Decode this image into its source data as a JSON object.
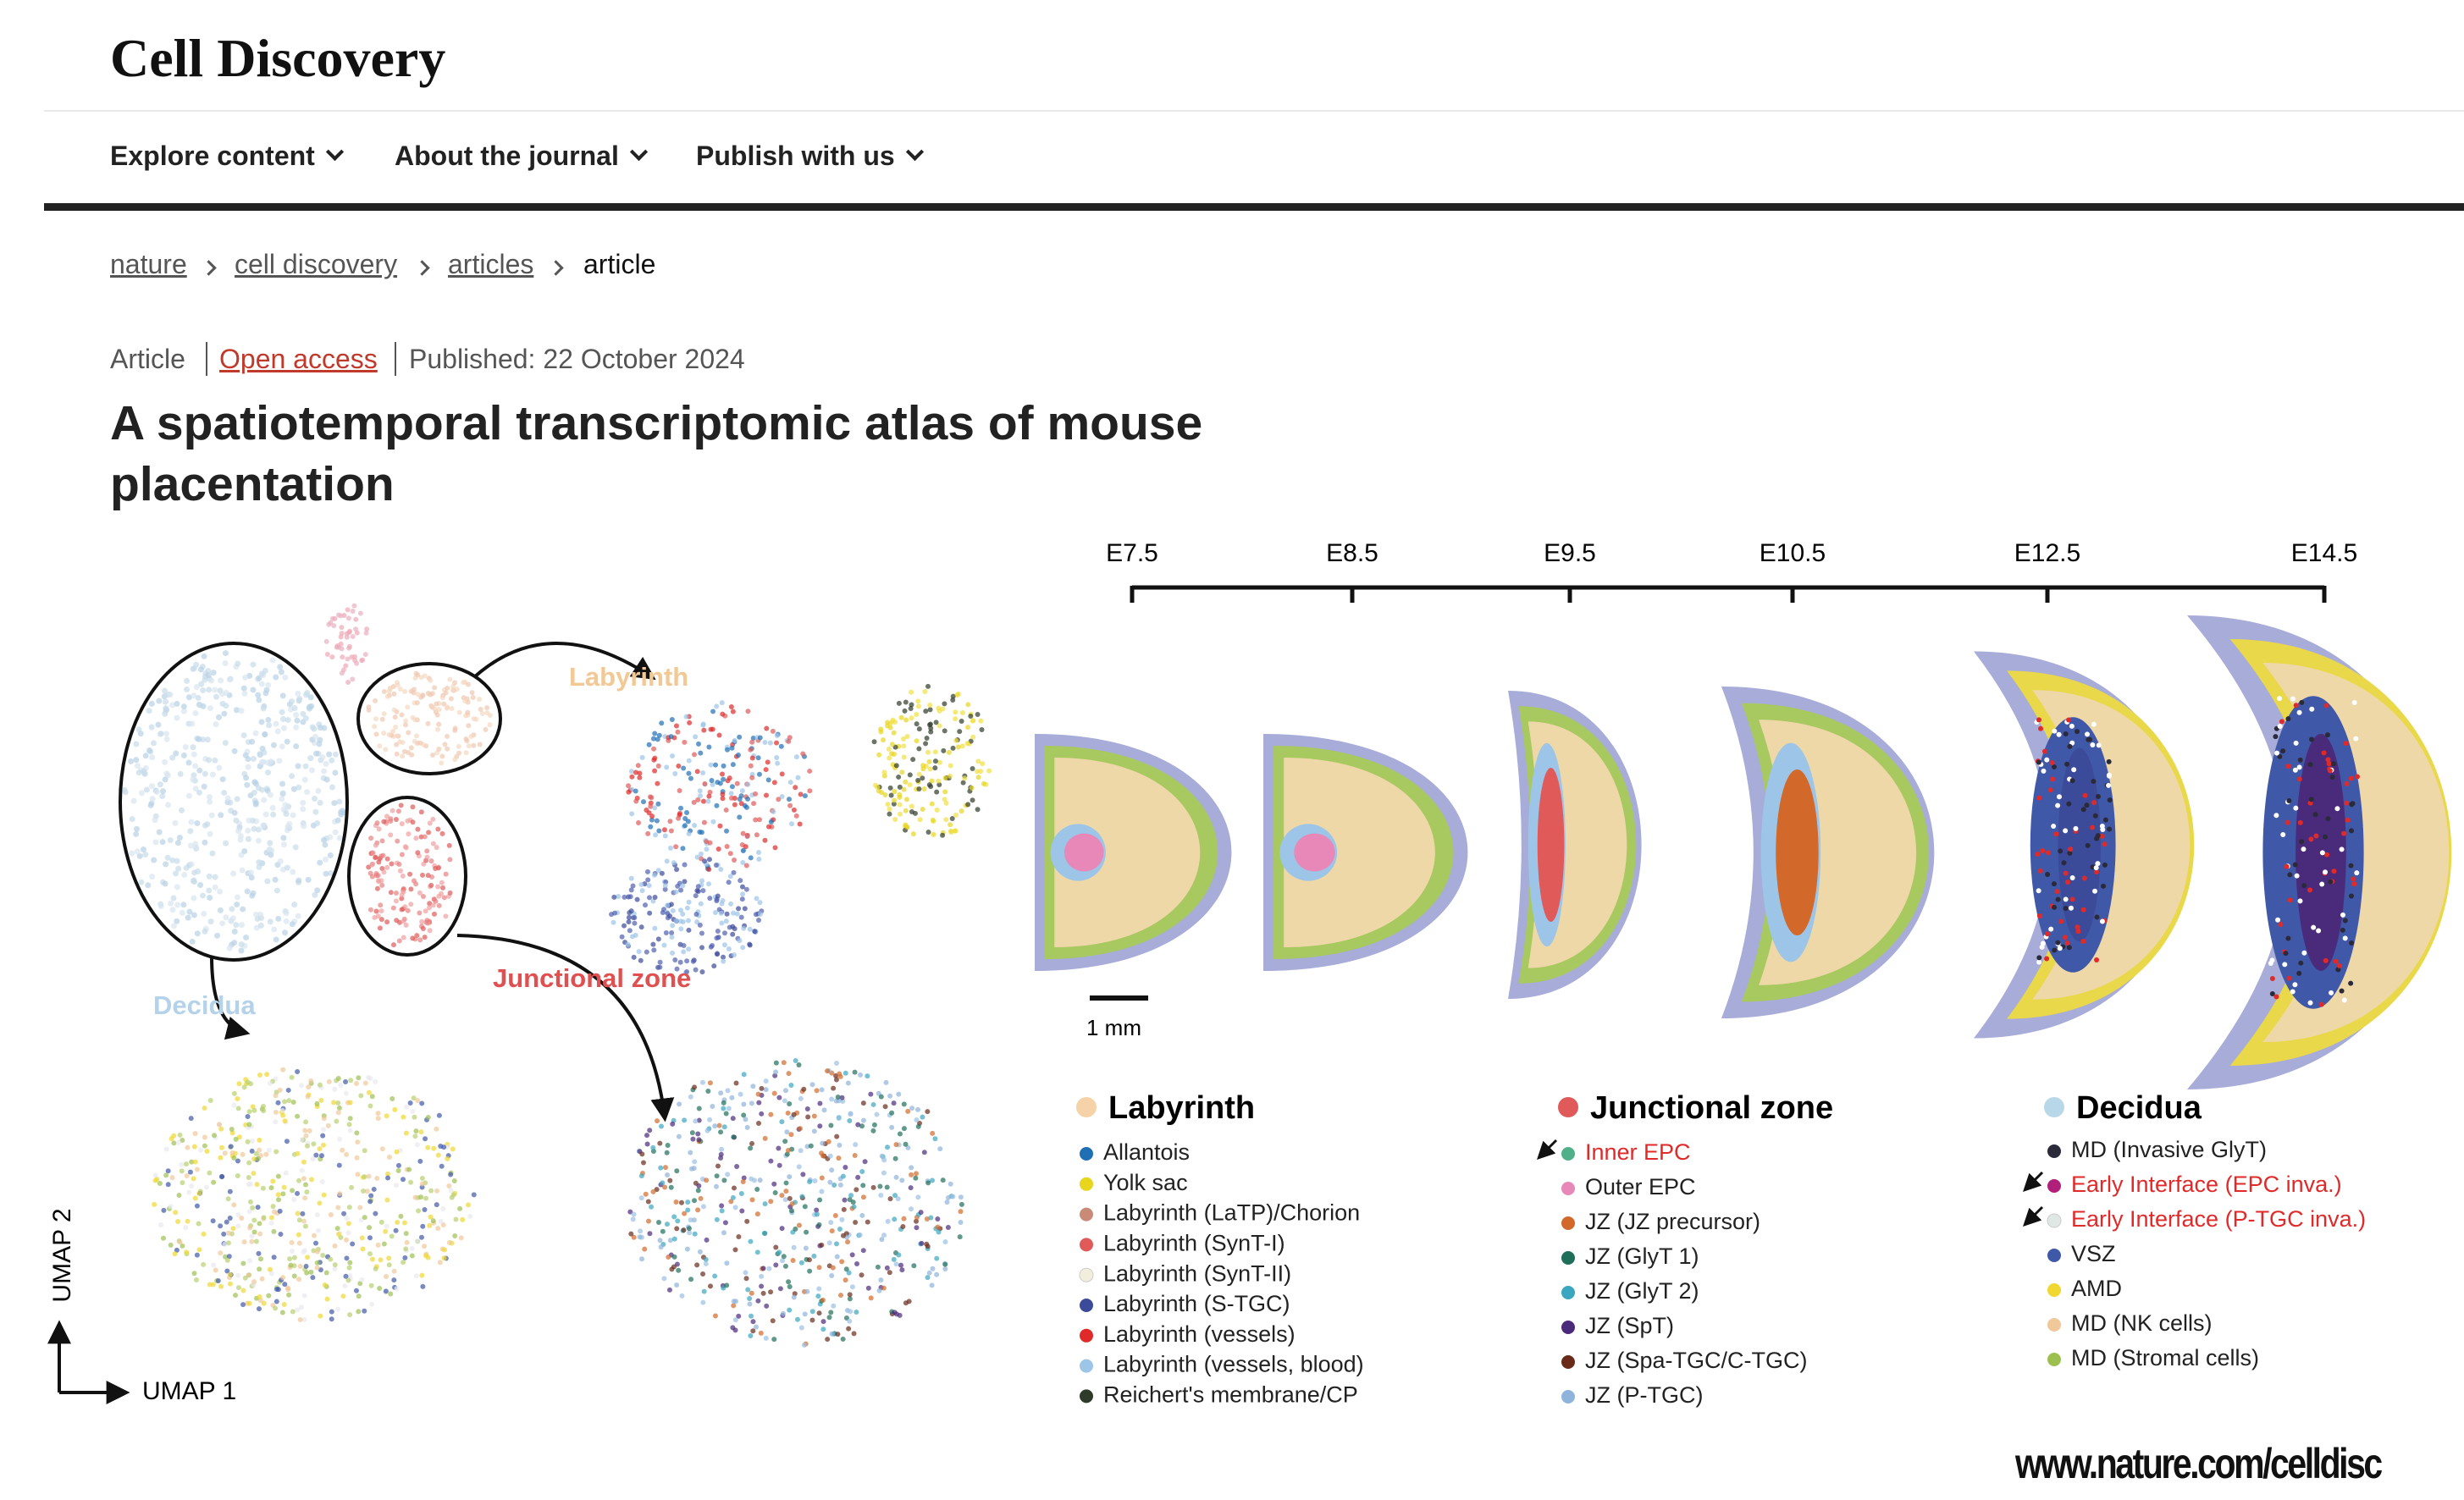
{
  "header": {
    "journal": "Cell Discovery",
    "nav": [
      "Explore content",
      "About the journal",
      "Publish with us"
    ]
  },
  "breadcrumb": [
    "nature",
    "cell discovery",
    "articles",
    "article"
  ],
  "article": {
    "type": "Article",
    "access": "Open access",
    "published": "Published: 22 October 2024",
    "title": "A spatiotemporal transcriptomic atlas of mouse placentation"
  },
  "figure": {
    "umap": {
      "labels": [
        {
          "text": "Labyrinth",
          "color": "#f2c894"
        },
        {
          "text": "Junctional zone",
          "color": "#e05050"
        },
        {
          "text": "Decidua",
          "color": "#b4d2ea"
        }
      ],
      "axis_y": "UMAP 2",
      "axis_x": "UMAP 1"
    },
    "stages": [
      "E7.5",
      "E8.5",
      "E9.5",
      "E10.5",
      "E12.5",
      "E14.5"
    ],
    "scale_bar": "1 mm",
    "legend": [
      {
        "title": "Labyrinth",
        "color": "#f5d2a8",
        "items": [
          {
            "label": "Allantois",
            "color": "#1f6fb5"
          },
          {
            "label": "Yolk sac",
            "color": "#e8d51e"
          },
          {
            "label": "Labyrinth (LaTP)/Chorion",
            "color": "#c98a78"
          },
          {
            "label": "Labyrinth (SynT-I)",
            "color": "#e05a5a"
          },
          {
            "label": "Labyrinth (SynT-II)",
            "color": "#f3eedb"
          },
          {
            "label": "Labyrinth (S-TGC)",
            "color": "#3c4a9a"
          },
          {
            "label": "Labyrinth (vessels)",
            "color": "#e02a2a"
          },
          {
            "label": "Labyrinth (vessels, blood)",
            "color": "#9cc5e8"
          },
          {
            "label": "Reichert's membrane/CP",
            "color": "#2f3b2a"
          }
        ]
      },
      {
        "title": "Junctional zone",
        "color": "#e05a5a",
        "items": [
          {
            "label": "Inner EPC",
            "color": "#4fb08a",
            "highlight": true
          },
          {
            "label": "Outer EPC",
            "color": "#e888b8"
          },
          {
            "label": "JZ (JZ precursor)",
            "color": "#d2692a"
          },
          {
            "label": "JZ (GlyT 1)",
            "color": "#1e6e5a"
          },
          {
            "label": "JZ (GlyT 2)",
            "color": "#3aa6c0"
          },
          {
            "label": "JZ (SpT)",
            "color": "#4a2a7a"
          },
          {
            "label": "JZ (Spa-TGC/C-TGC)",
            "color": "#6a2a1a"
          },
          {
            "label": "JZ (P-TGC)",
            "color": "#8fb4dc"
          }
        ]
      },
      {
        "title": "Decidua",
        "color": "#b8d8ea",
        "items": [
          {
            "label": "MD (Invasive GlyT)",
            "color": "#2a2a3a"
          },
          {
            "label": "Early Interface (EPC inva.)",
            "color": "#b0207a",
            "highlight": true
          },
          {
            "label": "Early Interface (P-TGC inva.)",
            "color": "#dfe8e4",
            "highlight": true
          },
          {
            "label": "VSZ",
            "color": "#4058a8"
          },
          {
            "label": "AMD",
            "color": "#f0d830"
          },
          {
            "label": "MD (NK cells)",
            "color": "#f0c89a"
          },
          {
            "label": "MD (Stromal cells)",
            "color": "#9cc050"
          }
        ]
      }
    ]
  },
  "footer": {
    "url": "www.nature.com/celldisc"
  }
}
